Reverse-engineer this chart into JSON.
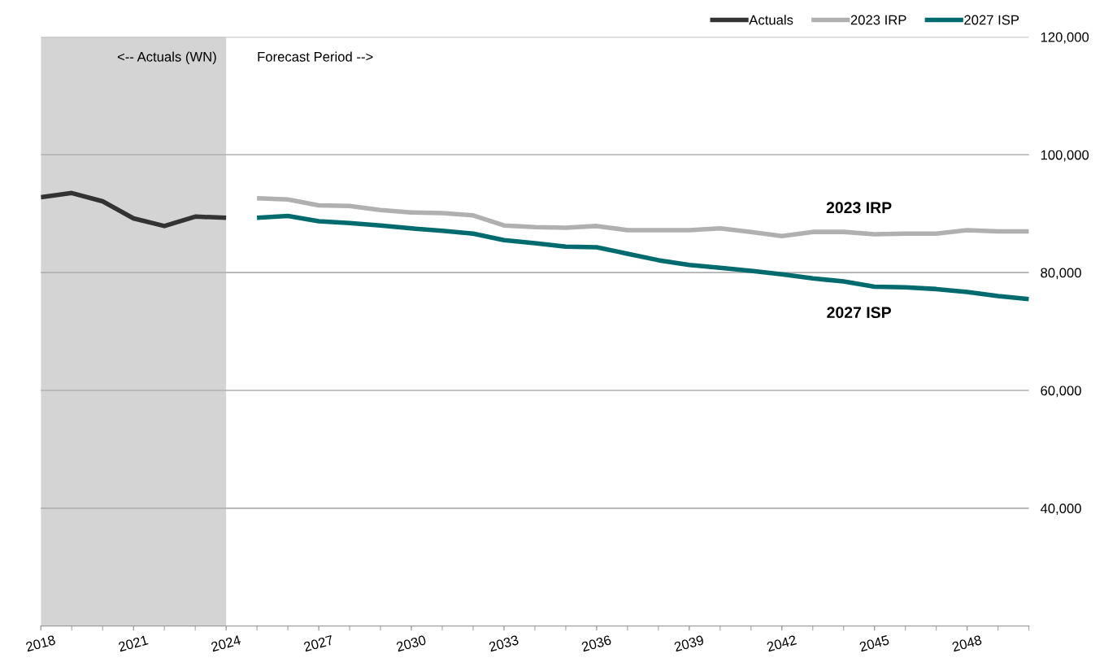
{
  "chart_data": {
    "type": "line",
    "xlim": [
      2018,
      2050
    ],
    "xticks": [
      2018,
      2021,
      2024,
      2027,
      2030,
      2033,
      2036,
      2039,
      2042,
      2045,
      2048
    ],
    "ylim": [
      20000,
      120000
    ],
    "yticks": [
      {
        "value": 40000,
        "label": "40,000"
      },
      {
        "value": 60000,
        "label": "60,000"
      },
      {
        "value": 80000,
        "label": "80,000"
      },
      {
        "value": 100000,
        "label": "100,000"
      },
      {
        "value": 120000,
        "label": "120,000"
      }
    ],
    "grid": "y",
    "legend": "top right",
    "series": [
      {
        "name": "Actuals",
        "color": "#333333",
        "x": [
          2018,
          2019,
          2020,
          2021,
          2022,
          2023,
          2024
        ],
        "values": [
          92800,
          93500,
          92100,
          89200,
          87900,
          89500,
          89300
        ]
      },
      {
        "name": "2023 IRP",
        "color": "#b0b0b0",
        "x": [
          2025,
          2026,
          2027,
          2028,
          2029,
          2030,
          2031,
          2032,
          2033,
          2034,
          2035,
          2036,
          2037,
          2038,
          2039,
          2040,
          2041,
          2042,
          2043,
          2044,
          2045,
          2046,
          2047,
          2048,
          2049,
          2050
        ],
        "values": [
          92600,
          92400,
          91400,
          91300,
          90600,
          90200,
          90100,
          89700,
          88000,
          87700,
          87600,
          87900,
          87200,
          87200,
          87200,
          87500,
          86900,
          86200,
          86900,
          86900,
          86500,
          86600,
          86600,
          87200,
          87000,
          87000
        ]
      },
      {
        "name": "2027 ISP",
        "color": "#006b6f",
        "x": [
          2025,
          2026,
          2027,
          2028,
          2029,
          2030,
          2031,
          2032,
          2033,
          2034,
          2035,
          2036,
          2037,
          2038,
          2039,
          2040,
          2041,
          2042,
          2043,
          2044,
          2045,
          2046,
          2047,
          2048,
          2049,
          2050
        ],
        "values": [
          89300,
          89600,
          88700,
          88400,
          88000,
          87500,
          87100,
          86600,
          85500,
          85000,
          84400,
          84300,
          83200,
          82100,
          81300,
          80800,
          80300,
          79700,
          79000,
          78500,
          77600,
          77500,
          77200,
          76700,
          76000,
          75500
        ]
      }
    ],
    "bands": [
      {
        "axis": "x",
        "from": 2018,
        "to": 2024,
        "label": "<-- Actuals (WN)",
        "color": "#d4d4d4"
      }
    ],
    "annotations": [
      "Forecast Period -->",
      "2023 IRP",
      "2027 ISP"
    ]
  }
}
